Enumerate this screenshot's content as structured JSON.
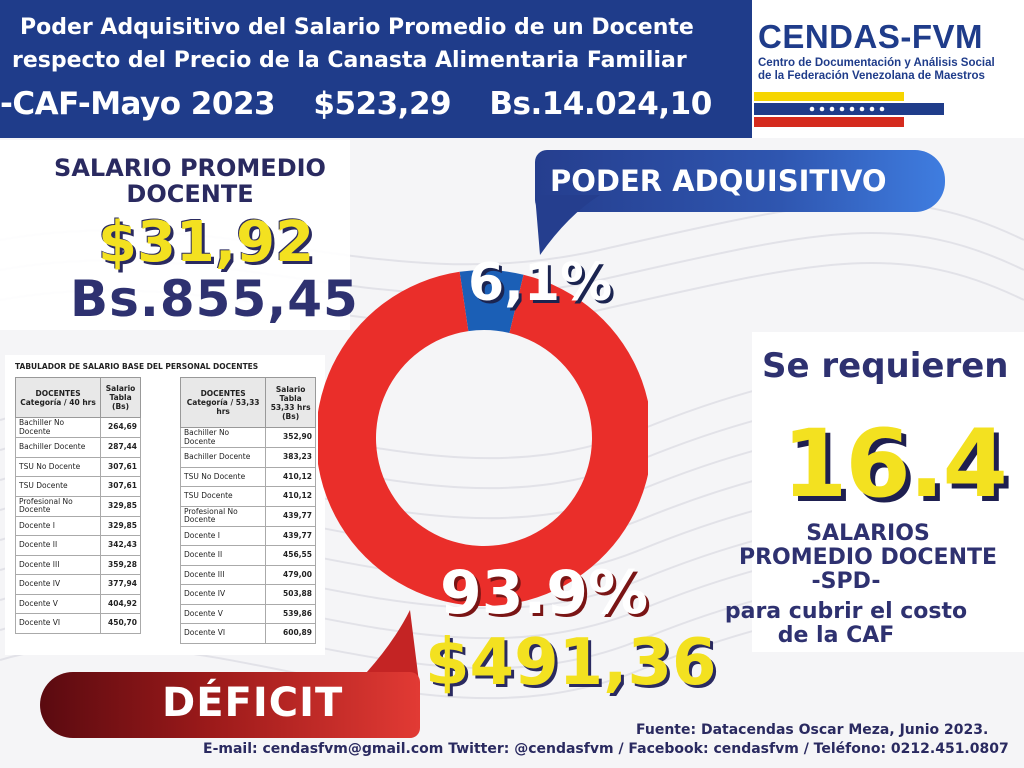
{
  "header": {
    "line1": "Poder Adquisitivo del Salario Promedio de un Docente",
    "line2": "respecto del Precio de la Canasta Alimentaria Familiar",
    "caf_label": "-CAF-Mayo 2023",
    "caf_usd": "$523,29",
    "caf_bs": "Bs.14.024,10",
    "header_color": "#1f3c8a"
  },
  "logo": {
    "name": "CENDAS-FVM",
    "sub1": "Centro de Documentación y Análisis Social",
    "sub2": "de la Federación Venezolana de Maestros",
    "flag_colors": [
      "#f6d500",
      "#1f3c8a",
      "#d52b1e"
    ]
  },
  "salary": {
    "title_line1": "SALARIO PROMEDIO",
    "title_line2": "DOCENTE",
    "usd": "$31,92",
    "bs": "Bs.855,45"
  },
  "tabulator": {
    "title": "TABULADOR DE SALARIO BASE DEL PERSONAL DOCENTES",
    "table1": {
      "headers": [
        "DOCENTES Categoría / 40 hrs",
        "Salario Tabla (Bs)"
      ],
      "rows": [
        [
          "Bachiller No Docente",
          "264,69"
        ],
        [
          "Bachiller Docente",
          "287,44"
        ],
        [
          "TSU No Docente",
          "307,61"
        ],
        [
          "TSU Docente",
          "307,61"
        ],
        [
          "Profesional No Docente",
          "329,85"
        ],
        [
          "Docente I",
          "329,85"
        ],
        [
          "Docente II",
          "342,43"
        ],
        [
          "Docente III",
          "359,28"
        ],
        [
          "Docente IV",
          "377,94"
        ],
        [
          "Docente V",
          "404,92"
        ],
        [
          "Docente VI",
          "450,70"
        ]
      ]
    },
    "table2": {
      "headers": [
        "DOCENTES Categoría / 53,33 hrs",
        "Salario Tabla 53,33 hrs (Bs)"
      ],
      "rows": [
        [
          "Bachiller No Docente",
          "352,90"
        ],
        [
          "Bachiller Docente",
          "383,23"
        ],
        [
          "TSU No Docente",
          "410,12"
        ],
        [
          "TSU Docente",
          "410,12"
        ],
        [
          "Profesional No Docente",
          "439,77"
        ],
        [
          "Docente I",
          "439,77"
        ],
        [
          "Docente II",
          "456,55"
        ],
        [
          "Docente III",
          "479,00"
        ],
        [
          "Docente IV",
          "503,88"
        ],
        [
          "Docente V",
          "539,86"
        ],
        [
          "Docente VI",
          "600,89"
        ]
      ]
    }
  },
  "chart_data": {
    "type": "pie",
    "donut": true,
    "slices": [
      {
        "label": "PODER ADQUISITIVO",
        "value": 6.1,
        "display": "6,1%",
        "color": "#1b5fb6"
      },
      {
        "label": "DÉFICIT",
        "value": 93.9,
        "display": "93.9%",
        "color": "#ea2e2a"
      }
    ],
    "deficit_usd": "$491,36"
  },
  "required": {
    "line1": "Se requieren",
    "number": "16.4",
    "line2": "SALARIOS",
    "line3": "PROMEDIO DOCENTE",
    "line4": "-SPD-",
    "line5": "para cubrir el costo",
    "line6": "de la CAF"
  },
  "footer": {
    "source": "Fuente: Datacendas Oscar Meza, Junio 2023.",
    "contact": "E-mail: cendasfvm@gmail.com Twitter: @cendasfvm / Facebook: cendasfvm / Teléfono: 0212.451.0807"
  }
}
